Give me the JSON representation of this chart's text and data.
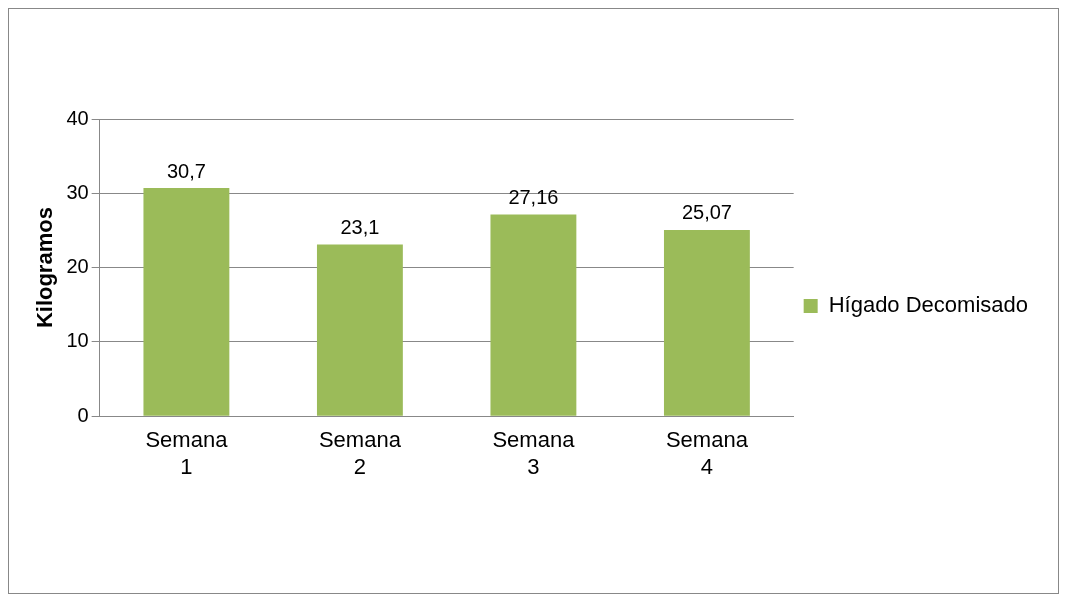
{
  "chart_data": {
    "type": "bar",
    "ylabel": "Kilogramos",
    "categories": [
      "Semana 1",
      "Semana 2",
      "Semana 3",
      "Semana 4"
    ],
    "series": [
      {
        "name": "Hígado Decomisado",
        "color": "#9bbb59",
        "values": [
          30.7,
          23.1,
          27.16,
          25.07
        ],
        "value_labels": [
          "30,7",
          "23,1",
          "27,16",
          "25,07"
        ]
      }
    ],
    "ylim": [
      0,
      40
    ],
    "yticks": [
      0,
      10,
      20,
      30,
      40
    ],
    "grid": "y",
    "legend": "right"
  }
}
